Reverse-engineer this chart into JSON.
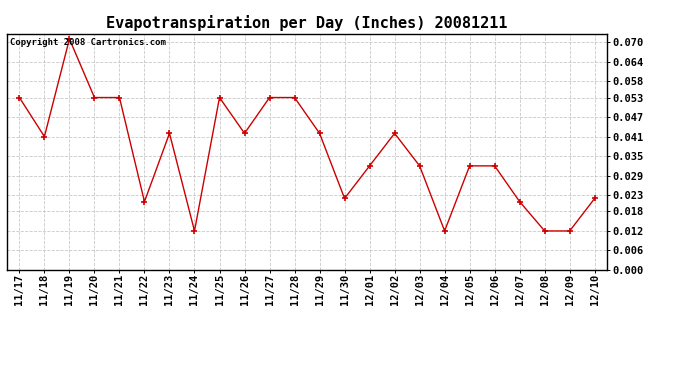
{
  "title": "Evapotranspiration per Day (Inches) 20081211",
  "copyright": "Copyright 2008 Cartronics.com",
  "labels": [
    "11/17",
    "11/18",
    "11/19",
    "11/20",
    "11/21",
    "11/22",
    "11/23",
    "11/24",
    "11/25",
    "11/26",
    "11/27",
    "11/28",
    "11/29",
    "11/30",
    "12/01",
    "12/02",
    "12/03",
    "12/04",
    "12/05",
    "12/06",
    "12/07",
    "12/08",
    "12/09",
    "12/10"
  ],
  "values": [
    0.053,
    0.041,
    0.071,
    0.053,
    0.053,
    0.021,
    0.042,
    0.012,
    0.053,
    0.042,
    0.053,
    0.053,
    0.042,
    0.022,
    0.032,
    0.042,
    0.032,
    0.012,
    0.032,
    0.032,
    0.021,
    0.012,
    0.012,
    0.022
  ],
  "ylim": [
    0.0,
    0.0726
  ],
  "yticks": [
    0.0,
    0.006,
    0.012,
    0.018,
    0.023,
    0.029,
    0.035,
    0.041,
    0.047,
    0.053,
    0.058,
    0.064,
    0.07
  ],
  "line_color": "#cc0000",
  "marker": "+",
  "marker_color": "#cc0000",
  "bg_color": "#ffffff",
  "grid_color": "#bbbbbb",
  "title_fontsize": 11,
  "tick_fontsize": 7.5,
  "copyright_fontsize": 6.5
}
